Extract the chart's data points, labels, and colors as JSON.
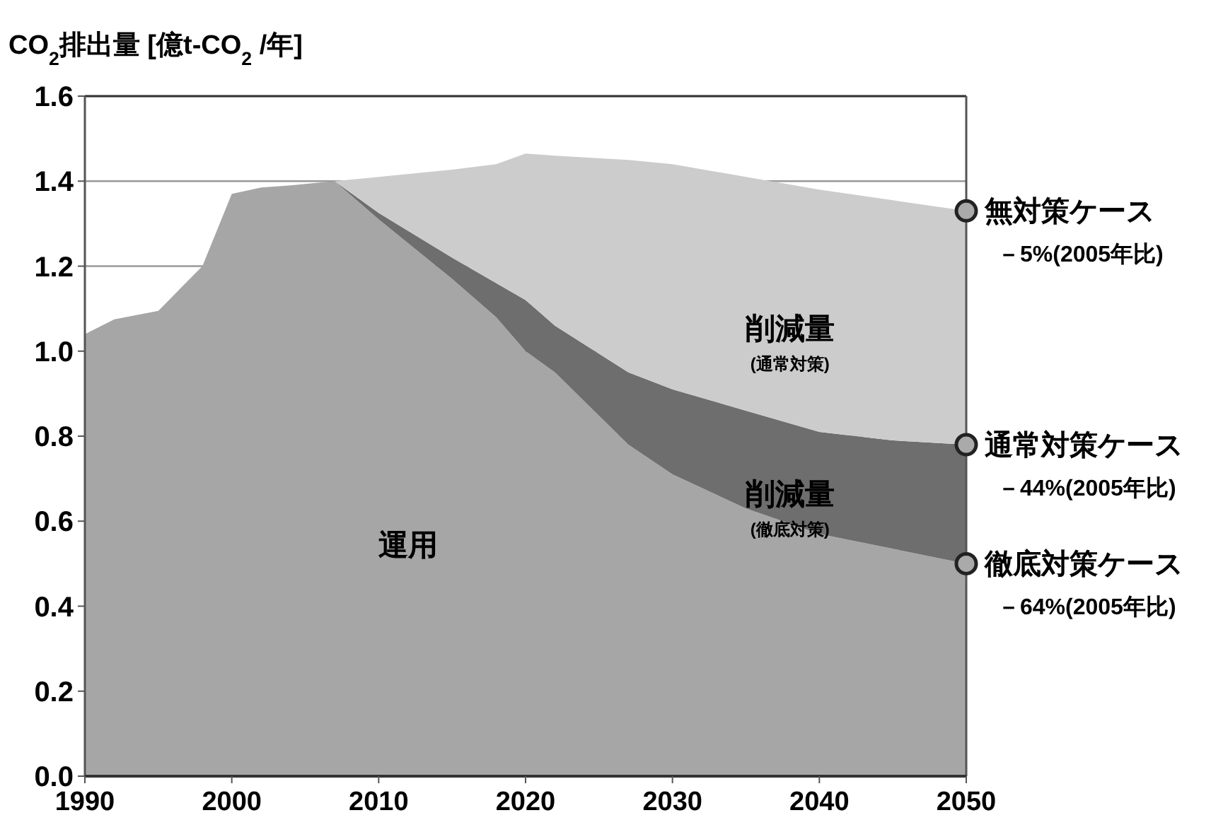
{
  "chart_data": {
    "type": "area",
    "stacked": true,
    "ylabel": "CO$_{2}$排出量 [億t-CO$_{2}$ /年]",
    "x": [
      1990,
      1992,
      1995,
      1998,
      2000,
      2002,
      2004,
      2007,
      2010,
      2015,
      2018,
      2020,
      2022,
      2027,
      2030,
      2035,
      2040,
      2045,
      2050
    ],
    "series": [
      {
        "name": "運用",
        "color": "#a6a6a6",
        "values": [
          1.04,
          1.075,
          1.095,
          1.2,
          1.37,
          1.385,
          1.39,
          1.4,
          1.31,
          1.17,
          1.08,
          1.0,
          0.95,
          0.78,
          0.71,
          0.63,
          0.57,
          0.535,
          0.5
        ]
      },
      {
        "name": "削減量(徹底対策)",
        "color": "#6e6e6e",
        "values": [
          0,
          0,
          0,
          0,
          0,
          0,
          0,
          0,
          0.015,
          0.05,
          0.08,
          0.12,
          0.11,
          0.17,
          0.2,
          0.23,
          0.24,
          0.255,
          0.28
        ]
      },
      {
        "name": "削減量(通常対策)",
        "color": "#cccccc",
        "values": [
          0,
          0,
          0,
          0,
          0,
          0,
          0,
          0,
          0.085,
          0.207,
          0.28,
          0.345,
          0.4,
          0.5,
          0.53,
          0.55,
          0.57,
          0.565,
          0.55
        ]
      }
    ],
    "xlim": [
      1990,
      2050
    ],
    "ylim": [
      0,
      1.6
    ],
    "xticks": [
      1990,
      2000,
      2010,
      2020,
      2030,
      2040,
      2050
    ],
    "yticks": [
      {
        "value": 0,
        "label": "0.0"
      },
      0.2,
      0.4,
      0.6,
      0.8,
      {
        "value": 1,
        "label": "1.0"
      },
      1.2,
      1.4,
      1.6
    ],
    "grid": "y",
    "annotations": [
      "無対策ケース",
      "－5%(2005年比)",
      "通常対策ケース",
      "－44%(2005年比)",
      "徹底対策ケース",
      "－64%(2005年比)"
    ]
  }
}
